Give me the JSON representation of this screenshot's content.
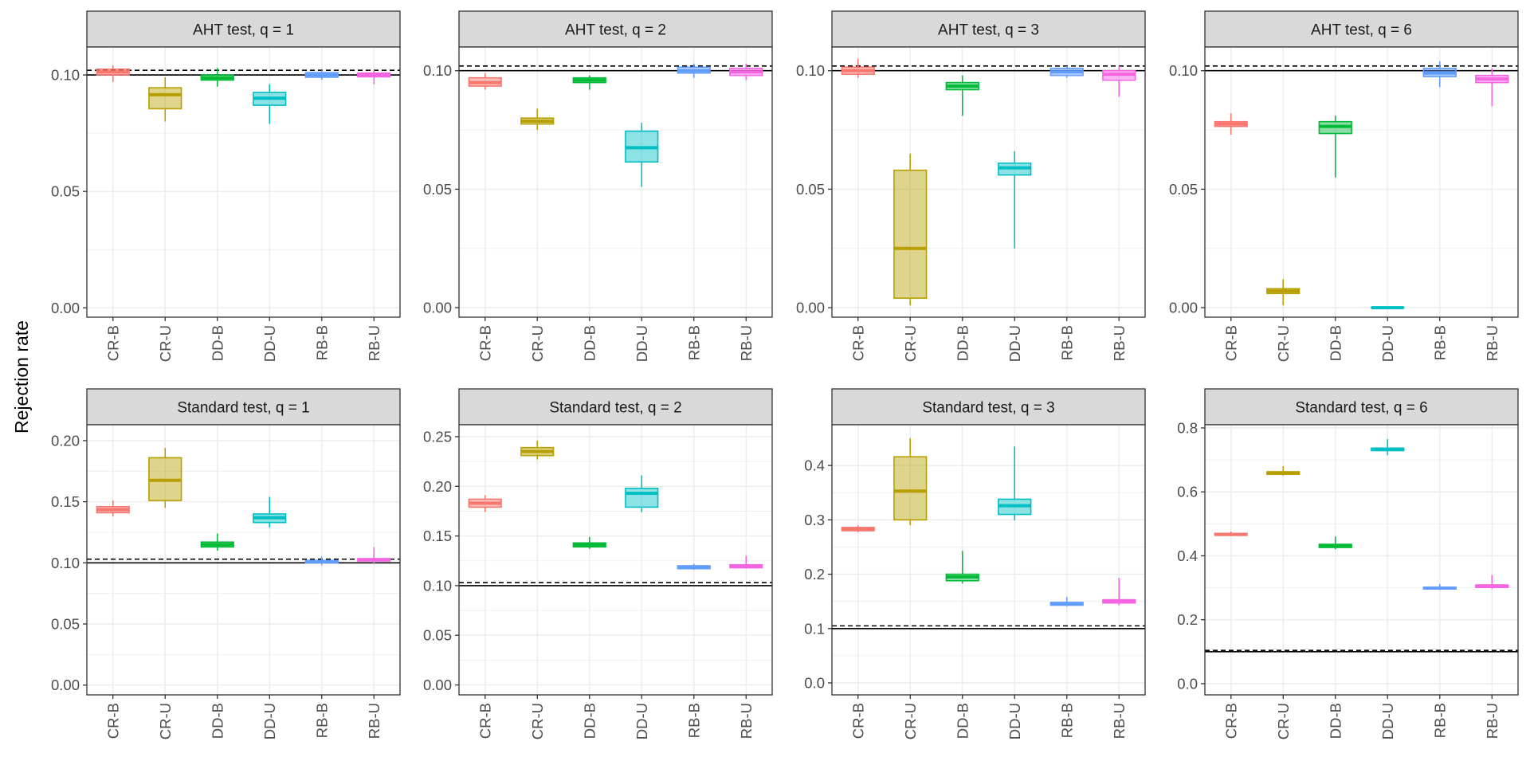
{
  "colors": {
    "CR-B": "#F8766D",
    "CR-U": "#B79F00",
    "DD-B": "#00BA38",
    "DD-U": "#00BFC4",
    "RB-B": "#619CFF",
    "RB-U": "#F564E3",
    "strip_background": "#D9D9D9",
    "grid": "#EBEBEB"
  },
  "chart_data": {
    "type": "box",
    "ylabel": "Rejection rate",
    "categories": [
      "CR-B",
      "CR-U",
      "DD-B",
      "DD-U",
      "RB-B",
      "RB-U"
    ],
    "grid": true,
    "panels": [
      {
        "title": "AHT test, q = 1",
        "ylim": [
          -0.004,
          0.112
        ],
        "yticks": [
          0.0,
          0.05,
          0.1
        ],
        "ytick_labels": [
          "0.00",
          "0.05",
          "0.10"
        ],
        "ref_solid": 0.1,
        "ref_dashed": 0.102,
        "boxes": [
          {
            "category": "CR-B",
            "min": 0.097,
            "q1": 0.1,
            "median": 0.1013,
            "q3": 0.1025,
            "max": 0.104
          },
          {
            "category": "CR-U",
            "min": 0.08,
            "q1": 0.0855,
            "median": 0.0915,
            "q3": 0.0945,
            "max": 0.099
          },
          {
            "category": "DD-B",
            "min": 0.095,
            "q1": 0.0978,
            "median": 0.0988,
            "q3": 0.1,
            "max": 0.103
          },
          {
            "category": "DD-U",
            "min": 0.079,
            "q1": 0.087,
            "median": 0.09,
            "q3": 0.0925,
            "max": 0.096
          },
          {
            "category": "RB-B",
            "min": 0.098,
            "q1": 0.099,
            "median": 0.1,
            "q3": 0.101,
            "max": 0.102
          },
          {
            "category": "RB-U",
            "min": 0.096,
            "q1": 0.0992,
            "median": 0.1,
            "q3": 0.1008,
            "max": 0.102
          }
        ]
      },
      {
        "title": "AHT test, q = 2",
        "ylim": [
          -0.004,
          0.11
        ],
        "yticks": [
          0.0,
          0.05,
          0.1
        ],
        "ytick_labels": [
          "0.00",
          "0.05",
          "0.10"
        ],
        "ref_solid": 0.1,
        "ref_dashed": 0.102,
        "boxes": [
          {
            "category": "CR-B",
            "min": 0.092,
            "q1": 0.0935,
            "median": 0.095,
            "q3": 0.097,
            "max": 0.099
          },
          {
            "category": "CR-U",
            "min": 0.075,
            "q1": 0.0775,
            "median": 0.0787,
            "q3": 0.08,
            "max": 0.084
          },
          {
            "category": "DD-B",
            "min": 0.092,
            "q1": 0.095,
            "median": 0.096,
            "q3": 0.097,
            "max": 0.098
          },
          {
            "category": "DD-U",
            "min": 0.051,
            "q1": 0.0615,
            "median": 0.0675,
            "q3": 0.0745,
            "max": 0.078
          },
          {
            "category": "RB-B",
            "min": 0.097,
            "q1": 0.099,
            "median": 0.1,
            "q3": 0.1015,
            "max": 0.103
          },
          {
            "category": "RB-U",
            "min": 0.096,
            "q1": 0.098,
            "median": 0.0995,
            "q3": 0.101,
            "max": 0.103
          }
        ]
      },
      {
        "title": "AHT test, q = 3",
        "ylim": [
          -0.004,
          0.11
        ],
        "yticks": [
          0.0,
          0.05,
          0.1
        ],
        "ytick_labels": [
          "0.00",
          "0.05",
          "0.10"
        ],
        "ref_solid": 0.1,
        "ref_dashed": 0.102,
        "boxes": [
          {
            "category": "CR-B",
            "min": 0.097,
            "q1": 0.0985,
            "median": 0.1,
            "q3": 0.1015,
            "max": 0.105
          },
          {
            "category": "CR-U",
            "min": 0.001,
            "q1": 0.004,
            "median": 0.025,
            "q3": 0.058,
            "max": 0.065
          },
          {
            "category": "DD-B",
            "min": 0.081,
            "q1": 0.092,
            "median": 0.0935,
            "q3": 0.095,
            "max": 0.098
          },
          {
            "category": "DD-U",
            "min": 0.025,
            "q1": 0.056,
            "median": 0.059,
            "q3": 0.061,
            "max": 0.066
          },
          {
            "category": "RB-B",
            "min": 0.097,
            "q1": 0.098,
            "median": 0.0995,
            "q3": 0.101,
            "max": 0.102
          },
          {
            "category": "RB-U",
            "min": 0.089,
            "q1": 0.096,
            "median": 0.0985,
            "q3": 0.1,
            "max": 0.102
          }
        ]
      },
      {
        "title": "AHT test, q = 6",
        "ylim": [
          -0.004,
          0.11
        ],
        "yticks": [
          0.0,
          0.05,
          0.1
        ],
        "ytick_labels": [
          "0.00",
          "0.05",
          "0.10"
        ],
        "ref_solid": 0.1,
        "ref_dashed": 0.102,
        "boxes": [
          {
            "category": "CR-B",
            "min": 0.073,
            "q1": 0.0765,
            "median": 0.0775,
            "q3": 0.0785,
            "max": 0.082
          },
          {
            "category": "CR-U",
            "min": 0.001,
            "q1": 0.006,
            "median": 0.007,
            "q3": 0.008,
            "max": 0.012
          },
          {
            "category": "DD-B",
            "min": 0.055,
            "q1": 0.0735,
            "median": 0.0765,
            "q3": 0.0785,
            "max": 0.081
          },
          {
            "category": "DD-U",
            "min": 0.0,
            "q1": 0.0,
            "median": 0.0,
            "q3": 0.0002,
            "max": 0.0005
          },
          {
            "category": "RB-B",
            "min": 0.093,
            "q1": 0.0975,
            "median": 0.099,
            "q3": 0.101,
            "max": 0.104
          },
          {
            "category": "RB-U",
            "min": 0.085,
            "q1": 0.095,
            "median": 0.0965,
            "q3": 0.098,
            "max": 0.101
          }
        ]
      },
      {
        "title": "Standard test, q = 1",
        "ylim": [
          -0.008,
          0.213
        ],
        "yticks": [
          0.0,
          0.05,
          0.1,
          0.15,
          0.2
        ],
        "ytick_labels": [
          "0.00",
          "0.05",
          "0.10",
          "0.15",
          "0.20"
        ],
        "ref_solid": 0.1,
        "ref_dashed": 0.103,
        "boxes": [
          {
            "category": "CR-B",
            "min": 0.138,
            "q1": 0.141,
            "median": 0.1435,
            "q3": 0.146,
            "max": 0.151
          },
          {
            "category": "CR-U",
            "min": 0.145,
            "q1": 0.151,
            "median": 0.1675,
            "q3": 0.186,
            "max": 0.194
          },
          {
            "category": "DD-B",
            "min": 0.11,
            "q1": 0.113,
            "median": 0.115,
            "q3": 0.117,
            "max": 0.124
          },
          {
            "category": "DD-U",
            "min": 0.129,
            "q1": 0.133,
            "median": 0.137,
            "q3": 0.14,
            "max": 0.154
          },
          {
            "category": "RB-B",
            "min": 0.098,
            "q1": 0.1,
            "median": 0.101,
            "q3": 0.102,
            "max": 0.105
          },
          {
            "category": "RB-U",
            "min": 0.099,
            "q1": 0.1015,
            "median": 0.1025,
            "q3": 0.1035,
            "max": 0.113
          }
        ]
      },
      {
        "title": "Standard test, q = 2",
        "ylim": [
          -0.01,
          0.262
        ],
        "yticks": [
          0.0,
          0.05,
          0.1,
          0.15,
          0.2,
          0.25
        ],
        "ytick_labels": [
          "0.00",
          "0.05",
          "0.10",
          "0.15",
          "0.20",
          "0.25"
        ],
        "ref_solid": 0.1,
        "ref_dashed": 0.103,
        "boxes": [
          {
            "category": "CR-B",
            "min": 0.174,
            "q1": 0.179,
            "median": 0.183,
            "q3": 0.187,
            "max": 0.191
          },
          {
            "category": "CR-U",
            "min": 0.227,
            "q1": 0.231,
            "median": 0.235,
            "q3": 0.239,
            "max": 0.246
          },
          {
            "category": "DD-B",
            "min": 0.137,
            "q1": 0.139,
            "median": 0.141,
            "q3": 0.143,
            "max": 0.149
          },
          {
            "category": "DD-U",
            "min": 0.174,
            "q1": 0.179,
            "median": 0.193,
            "q3": 0.198,
            "max": 0.211
          },
          {
            "category": "RB-B",
            "min": 0.116,
            "q1": 0.117,
            "median": 0.118,
            "q3": 0.12,
            "max": 0.122
          },
          {
            "category": "RB-U",
            "min": 0.117,
            "q1": 0.118,
            "median": 0.12,
            "q3": 0.121,
            "max": 0.13
          }
        ]
      },
      {
        "title": "Standard test, q = 3",
        "ylim": [
          -0.022,
          0.475
        ],
        "yticks": [
          0.0,
          0.1,
          0.2,
          0.3,
          0.4
        ],
        "ytick_labels": [
          "0.0",
          "0.1",
          "0.2",
          "0.3",
          "0.4"
        ],
        "ref_solid": 0.1,
        "ref_dashed": 0.105,
        "boxes": [
          {
            "category": "CR-B",
            "min": 0.277,
            "q1": 0.28,
            "median": 0.283,
            "q3": 0.286,
            "max": 0.29
          },
          {
            "category": "CR-U",
            "min": 0.29,
            "q1": 0.3,
            "median": 0.353,
            "q3": 0.416,
            "max": 0.45
          },
          {
            "category": "DD-B",
            "min": 0.183,
            "q1": 0.188,
            "median": 0.195,
            "q3": 0.2,
            "max": 0.243
          },
          {
            "category": "DD-U",
            "min": 0.299,
            "q1": 0.31,
            "median": 0.326,
            "q3": 0.338,
            "max": 0.435
          },
          {
            "category": "RB-B",
            "min": 0.141,
            "q1": 0.143,
            "median": 0.146,
            "q3": 0.148,
            "max": 0.158
          },
          {
            "category": "RB-U",
            "min": 0.143,
            "q1": 0.147,
            "median": 0.15,
            "q3": 0.153,
            "max": 0.193
          }
        ]
      },
      {
        "title": "Standard test, q = 6",
        "ylim": [
          -0.035,
          0.81
        ],
        "yticks": [
          0.0,
          0.2,
          0.4,
          0.6,
          0.8
        ],
        "ytick_labels": [
          "0.0",
          "0.2",
          "0.4",
          "0.6",
          "0.8"
        ],
        "ref_solid": 0.1,
        "ref_dashed": 0.104,
        "boxes": [
          {
            "category": "CR-B",
            "min": 0.462,
            "q1": 0.464,
            "median": 0.467,
            "q3": 0.47,
            "max": 0.476
          },
          {
            "category": "CR-U",
            "min": 0.651,
            "q1": 0.655,
            "median": 0.659,
            "q3": 0.663,
            "max": 0.68
          },
          {
            "category": "DD-B",
            "min": 0.42,
            "q1": 0.426,
            "median": 0.431,
            "q3": 0.436,
            "max": 0.46
          },
          {
            "category": "DD-U",
            "min": 0.715,
            "q1": 0.729,
            "median": 0.733,
            "q3": 0.737,
            "max": 0.765
          },
          {
            "category": "RB-B",
            "min": 0.293,
            "q1": 0.296,
            "median": 0.299,
            "q3": 0.302,
            "max": 0.312
          },
          {
            "category": "RB-U",
            "min": 0.296,
            "q1": 0.301,
            "median": 0.305,
            "q3": 0.309,
            "max": 0.34
          }
        ]
      }
    ]
  }
}
